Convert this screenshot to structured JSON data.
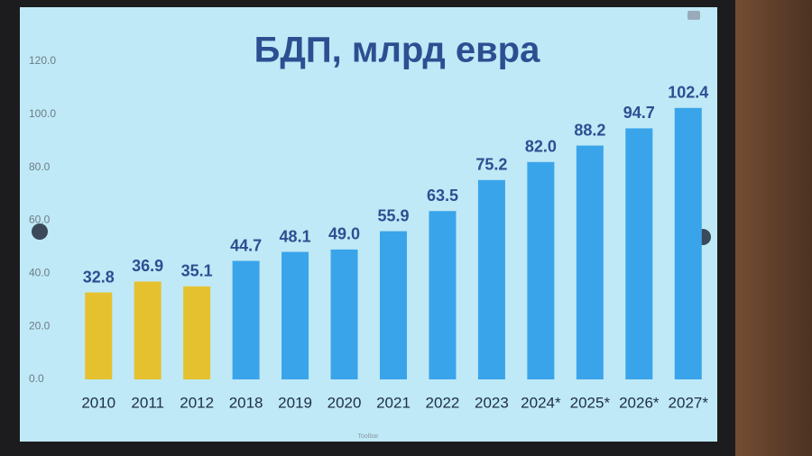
{
  "chart_data": {
    "type": "bar",
    "title": "БДП, млрд евра",
    "categories": [
      "2010",
      "2011",
      "2012",
      "2018",
      "2019",
      "2020",
      "2021",
      "2022",
      "2023",
      "2024*",
      "2025*",
      "2026*",
      "2027*"
    ],
    "values": [
      32.8,
      36.9,
      35.1,
      44.7,
      48.1,
      49.0,
      55.9,
      63.5,
      75.2,
      82.0,
      88.2,
      94.7,
      102.4
    ],
    "value_labels": [
      "32.8",
      "36.9",
      "35.1",
      "44.7",
      "48.1",
      "49.0",
      "55.9",
      "63.5",
      "75.2",
      "82.0",
      "88.2",
      "94.7",
      "102.4"
    ],
    "colors": [
      "#e6c12f",
      "#e6c12f",
      "#e6c12f",
      "#3aa4ea",
      "#3aa4ea",
      "#3aa4ea",
      "#3aa4ea",
      "#3aa4ea",
      "#3aa4ea",
      "#3aa4ea",
      "#3aa4ea",
      "#3aa4ea",
      "#3aa4ea"
    ],
    "ylim": [
      0,
      120
    ],
    "yticks": [
      {
        "value": 0,
        "label": "0.0"
      },
      {
        "value": 20,
        "label": "20.0"
      },
      {
        "value": 40,
        "label": "40.0"
      },
      {
        "value": 60,
        "label": "60.0"
      },
      {
        "value": 80,
        "label": "80.0"
      },
      {
        "value": 100,
        "label": "100.0"
      },
      {
        "value": 120,
        "label": "120.0"
      }
    ],
    "grid": false
  },
  "screen": {
    "toolbar": "Toolbar"
  }
}
